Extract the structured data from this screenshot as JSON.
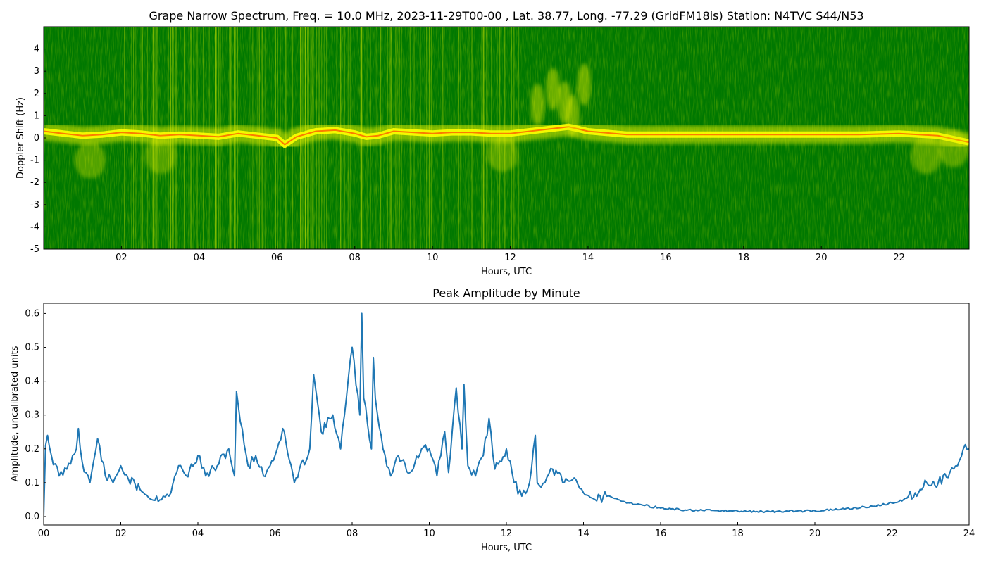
{
  "chart_data": [
    {
      "type": "heatmap",
      "title": "Grape Narrow Spectrum, Freq. = 10.0 MHz, 2023-11-29T00-00 , Lat.  38.77, Long. -77.29 (GridFM18is) Station: N4TVC S44/N53",
      "xlabel": "Hours, UTC",
      "ylabel": "Doppler Shift (Hz)",
      "xlim": [
        0,
        23.8
      ],
      "ylim": [
        -5,
        5
      ],
      "x_ticks": [
        "02",
        "04",
        "06",
        "08",
        "10",
        "12",
        "14",
        "16",
        "18",
        "20",
        "22"
      ],
      "x_tick_values": [
        2,
        4,
        6,
        8,
        10,
        12,
        14,
        16,
        18,
        20,
        22
      ],
      "y_ticks": [
        "4",
        "3",
        "2",
        "1",
        "0",
        "-1",
        "-2",
        "-3",
        "-4",
        "-5"
      ],
      "y_tick_values": [
        4,
        3,
        2,
        1,
        0,
        -1,
        -2,
        -3,
        -4,
        -5
      ],
      "grid": false,
      "colors": {
        "background": "#007800",
        "mid": "#d6ea00",
        "high": "#ffff00",
        "peak": "#ff4400"
      },
      "doppler_trace": {
        "x": [
          0,
          0.5,
          1,
          1.5,
          2,
          2.5,
          3,
          3.5,
          4,
          4.5,
          5,
          5.5,
          6,
          6.2,
          6.5,
          7,
          7.5,
          8,
          8.3,
          8.6,
          9,
          9.5,
          10,
          10.5,
          11,
          11.5,
          12,
          12.5,
          13,
          13.5,
          14,
          15,
          16,
          17,
          18,
          19,
          20,
          21,
          22,
          23,
          23.8
        ],
        "y": [
          0.3,
          0.2,
          0.1,
          0.15,
          0.25,
          0.2,
          0.1,
          0.15,
          0.1,
          0.05,
          0.2,
          0.1,
          0,
          -0.3,
          0.05,
          0.3,
          0.35,
          0.2,
          0.05,
          0.1,
          0.3,
          0.25,
          0.2,
          0.25,
          0.25,
          0.2,
          0.2,
          0.3,
          0.4,
          0.5,
          0.3,
          0.15,
          0.15,
          0.15,
          0.15,
          0.15,
          0.15,
          0.15,
          0.2,
          0.1,
          -0.2
        ]
      }
    },
    {
      "type": "line",
      "title": "Peak Amplitude by Minute",
      "xlabel": "Hours, UTC",
      "ylabel": "Amplitude, uncalibrated units",
      "xlim": [
        0,
        24
      ],
      "ylim": [
        -0.025,
        0.63
      ],
      "x_ticks": [
        "00",
        "02",
        "04",
        "06",
        "08",
        "10",
        "12",
        "14",
        "16",
        "18",
        "20",
        "22",
        "24"
      ],
      "x_tick_values": [
        0,
        2,
        4,
        6,
        8,
        10,
        12,
        14,
        16,
        18,
        20,
        22,
        24
      ],
      "y_ticks": [
        "0.0",
        "0.1",
        "0.2",
        "0.3",
        "0.4",
        "0.5",
        "0.6"
      ],
      "y_tick_values": [
        0,
        0.1,
        0.2,
        0.3,
        0.4,
        0.5,
        0.6
      ],
      "grid": false,
      "line_color": "#1f77b4",
      "x": [
        0,
        0.05,
        0.1,
        0.2,
        0.4,
        0.6,
        0.85,
        0.9,
        1,
        1.2,
        1.4,
        1.6,
        1.8,
        2,
        2.2,
        2.5,
        2.8,
        3.1,
        3.3,
        3.5,
        3.7,
        4,
        4.2,
        4.5,
        4.8,
        4.95,
        5.0,
        5.1,
        5.3,
        5.5,
        5.7,
        6,
        6.2,
        6.5,
        6.9,
        7.0,
        7.2,
        7.5,
        7.7,
        7.85,
        8.0,
        8.2,
        8.25,
        8.3,
        8.5,
        8.55,
        8.6,
        8.8,
        9,
        9.2,
        9.5,
        9.8,
        10,
        10.2,
        10.4,
        10.5,
        10.7,
        10.85,
        10.9,
        11,
        11.2,
        11.4,
        11.55,
        11.7,
        12,
        12.2,
        12.4,
        12.6,
        12.75,
        12.8,
        13,
        13.2,
        13.5,
        13.8,
        14,
        14.3,
        14.6,
        14.9,
        15.2,
        15.5,
        16,
        16.5,
        17,
        17.5,
        18,
        18.5,
        19,
        19.5,
        20,
        20.5,
        21,
        21.5,
        22,
        22.3,
        22.6,
        22.9,
        23.2,
        23.5,
        23.7,
        23.85,
        24
      ],
      "y": [
        0.0,
        0.21,
        0.24,
        0.18,
        0.12,
        0.14,
        0.2,
        0.26,
        0.16,
        0.1,
        0.23,
        0.12,
        0.1,
        0.15,
        0.11,
        0.08,
        0.05,
        0.06,
        0.07,
        0.15,
        0.12,
        0.18,
        0.12,
        0.15,
        0.2,
        0.12,
        0.37,
        0.28,
        0.15,
        0.18,
        0.12,
        0.18,
        0.26,
        0.1,
        0.2,
        0.42,
        0.25,
        0.3,
        0.2,
        0.35,
        0.5,
        0.3,
        0.6,
        0.35,
        0.2,
        0.47,
        0.35,
        0.2,
        0.12,
        0.18,
        0.13,
        0.2,
        0.2,
        0.12,
        0.25,
        0.13,
        0.38,
        0.2,
        0.39,
        0.15,
        0.12,
        0.18,
        0.29,
        0.14,
        0.2,
        0.1,
        0.06,
        0.1,
        0.24,
        0.1,
        0.1,
        0.14,
        0.1,
        0.11,
        0.07,
        0.05,
        0.06,
        0.05,
        0.04,
        0.035,
        0.025,
        0.02,
        0.018,
        0.017,
        0.016,
        0.015,
        0.015,
        0.016,
        0.017,
        0.02,
        0.025,
        0.03,
        0.04,
        0.05,
        0.07,
        0.1,
        0.1,
        0.13,
        0.15,
        0.2,
        0.2
      ]
    }
  ]
}
